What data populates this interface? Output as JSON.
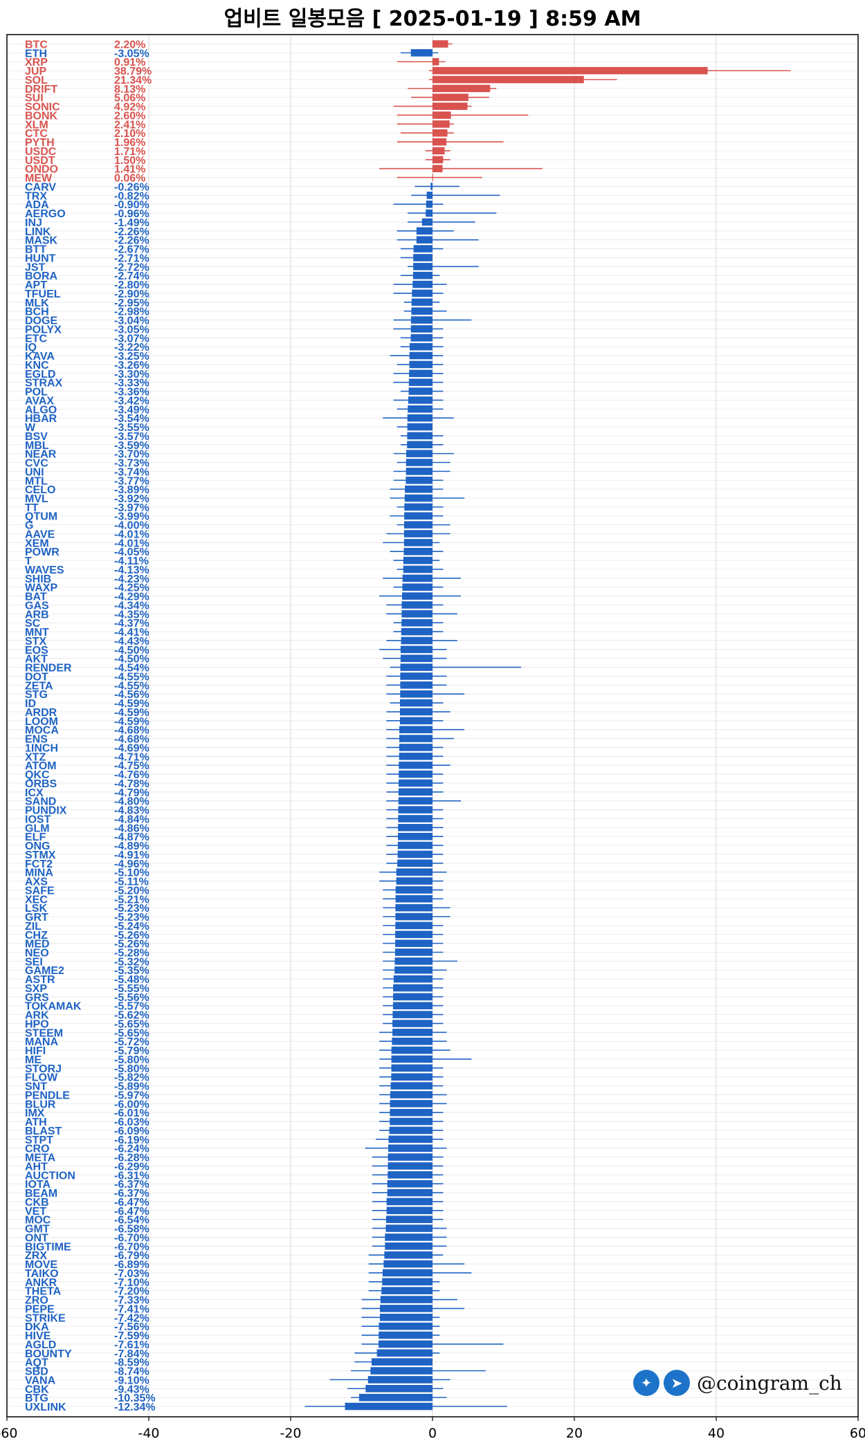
{
  "title": "업비트 일봉모음 [ 2025-01-19 ]  8:59 AM",
  "watermark": {
    "handle": "@coingram_ch",
    "icons": [
      "twitter-icon",
      "telegram-icon"
    ]
  },
  "colors": {
    "positive": "#d9534f",
    "negative": "#1f63c4",
    "grid": "#d9d9d9"
  },
  "chart_data": {
    "type": "bar",
    "orientation": "horizontal",
    "xlim": [
      -60,
      60
    ],
    "xticks": [
      -60,
      -40,
      -20,
      0,
      20,
      40,
      60
    ],
    "grid": true,
    "categories": [
      "BTC",
      "ETH",
      "XRP",
      "JUP",
      "SOL",
      "DRIFT",
      "SUI",
      "SONIC",
      "BONK",
      "XLM",
      "CTC",
      "PYTH",
      "USDC",
      "USDT",
      "ONDO",
      "MEW",
      "CARV",
      "TRX",
      "ADA",
      "AERGO",
      "INJ",
      "LINK",
      "MASK",
      "BTT",
      "HUNT",
      "JST",
      "BORA",
      "APT",
      "TFUEL",
      "MLK",
      "BCH",
      "DOGE",
      "POLYX",
      "ETC",
      "IQ",
      "KAVA",
      "KNC",
      "EGLD",
      "STRAX",
      "POL",
      "AVAX",
      "ALGO",
      "HBAR",
      "W",
      "BSV",
      "MBL",
      "NEAR",
      "CVC",
      "UNI",
      "MTL",
      "CELO",
      "MVL",
      "TT",
      "QTUM",
      "G",
      "AAVE",
      "XEM",
      "POWR",
      "T",
      "WAVES",
      "SHIB",
      "WAXP",
      "BAT",
      "GAS",
      "ARB",
      "SC",
      "MNT",
      "STX",
      "EOS",
      "AKT",
      "RENDER",
      "DOT",
      "ZETA",
      "STG",
      "ID",
      "ARDR",
      "LOOM",
      "MOCA",
      "ENS",
      "1INCH",
      "XTZ",
      "ATOM",
      "QKC",
      "ORBS",
      "ICX",
      "SAND",
      "PUNDIX",
      "IOST",
      "GLM",
      "ELF",
      "ONG",
      "STMX",
      "FCT2",
      "MINA",
      "AXS",
      "SAFE",
      "XEC",
      "LSK",
      "GRT",
      "ZIL",
      "CHZ",
      "MED",
      "NEO",
      "SEI",
      "GAME2",
      "ASTR",
      "SXP",
      "GRS",
      "TOKAMAK",
      "ARK",
      "HPO",
      "STEEM",
      "MANA",
      "HIFI",
      "ME",
      "STORJ",
      "FLOW",
      "SNT",
      "PENDLE",
      "BLUR",
      "IMX",
      "ATH",
      "BLAST",
      "STPT",
      "CRO",
      "META",
      "AHT",
      "AUCTION",
      "IOTA",
      "BEAM",
      "CKB",
      "VET",
      "MOC",
      "GMT",
      "ONT",
      "BIGTIME",
      "ZRX",
      "MOVE",
      "TAIKO",
      "ANKR",
      "THETA",
      "ZRO",
      "PEPE",
      "STRIKE",
      "DKA",
      "HIVE",
      "AGLD",
      "BOUNTY",
      "AQT",
      "SBD",
      "VANA",
      "CBK",
      "BTG",
      "UXLINK"
    ],
    "labels": [
      "2.20%",
      "-3.05%",
      "0.91%",
      "38.79%",
      "21.34%",
      "8.13%",
      "5.06%",
      "4.92%",
      "2.60%",
      "2.41%",
      "2.10%",
      "1.96%",
      "1.71%",
      "1.50%",
      "1.41%",
      "0.06%",
      "-0.26%",
      "-0.82%",
      "-0.90%",
      "-0.96%",
      "-1.49%",
      "-2.26%",
      "-2.26%",
      "-2.67%",
      "-2.71%",
      "-2.72%",
      "-2.74%",
      "-2.80%",
      "-2.90%",
      "-2.95%",
      "-2.98%",
      "-3.04%",
      "-3.05%",
      "-3.07%",
      "-3.22%",
      "-3.25%",
      "-3.26%",
      "-3.30%",
      "-3.33%",
      "-3.36%",
      "-3.42%",
      "-3.49%",
      "-3.54%",
      "-3.55%",
      "-3.57%",
      "-3.59%",
      "-3.70%",
      "-3.73%",
      "-3.74%",
      "-3.77%",
      "-3.89%",
      "-3.92%",
      "-3.97%",
      "-3.99%",
      "-4.00%",
      "-4.01%",
      "-4.01%",
      "-4.05%",
      "-4.11%",
      "-4.13%",
      "-4.23%",
      "-4.25%",
      "-4.29%",
      "-4.34%",
      "-4.35%",
      "-4.37%",
      "-4.41%",
      "-4.43%",
      "-4.50%",
      "-4.50%",
      "-4.54%",
      "-4.55%",
      "-4.55%",
      "-4.56%",
      "-4.59%",
      "-4.59%",
      "-4.59%",
      "-4.68%",
      "-4.68%",
      "-4.69%",
      "-4.71%",
      "-4.75%",
      "-4.76%",
      "-4.78%",
      "-4.79%",
      "-4.80%",
      "-4.83%",
      "-4.84%",
      "-4.86%",
      "-4.87%",
      "-4.89%",
      "-4.91%",
      "-4.96%",
      "-5.10%",
      "-5.11%",
      "-5.20%",
      "-5.21%",
      "-5.23%",
      "-5.23%",
      "-5.24%",
      "-5.26%",
      "-5.26%",
      "-5.28%",
      "-5.32%",
      "-5.35%",
      "-5.48%",
      "-5.55%",
      "-5.56%",
      "-5.57%",
      "-5.62%",
      "-5.65%",
      "-5.65%",
      "-5.72%",
      "-5.79%",
      "-5.80%",
      "-5.80%",
      "-5.82%",
      "-5.89%",
      "-5.97%",
      "-6.00%",
      "-6.01%",
      "-6.03%",
      "-6.09%",
      "-6.19%",
      "-6.24%",
      "-6.28%",
      "-6.29%",
      "-6.31%",
      "-6.37%",
      "-6.37%",
      "-6.47%",
      "-6.47%",
      "-6.54%",
      "-6.58%",
      "-6.70%",
      "-6.70%",
      "-6.79%",
      "-6.89%",
      "-7.03%",
      "-7.10%",
      "-7.20%",
      "-7.33%",
      "-7.41%",
      "-7.42%",
      "-7.56%",
      "-7.59%",
      "-7.61%",
      "-7.84%",
      "-8.59%",
      "-8.74%",
      "-9.10%",
      "-9.43%",
      "-10.35%",
      "-12.34%"
    ],
    "values": [
      2.2,
      -3.05,
      0.91,
      38.79,
      21.34,
      8.13,
      5.06,
      4.92,
      2.6,
      2.41,
      2.1,
      1.96,
      1.71,
      1.5,
      1.41,
      0.06,
      -0.26,
      -0.82,
      -0.9,
      -0.96,
      -1.49,
      -2.26,
      -2.26,
      -2.67,
      -2.71,
      -2.72,
      -2.74,
      -2.8,
      -2.9,
      -2.95,
      -2.98,
      -3.04,
      -3.05,
      -3.07,
      -3.22,
      -3.25,
      -3.26,
      -3.3,
      -3.33,
      -3.36,
      -3.42,
      -3.49,
      -3.54,
      -3.55,
      -3.57,
      -3.59,
      -3.7,
      -3.73,
      -3.74,
      -3.77,
      -3.89,
      -3.92,
      -3.97,
      -3.99,
      -4.0,
      -4.01,
      -4.01,
      -4.05,
      -4.11,
      -4.13,
      -4.23,
      -4.25,
      -4.29,
      -4.34,
      -4.35,
      -4.37,
      -4.41,
      -4.43,
      -4.5,
      -4.5,
      -4.54,
      -4.55,
      -4.55,
      -4.56,
      -4.59,
      -4.59,
      -4.59,
      -4.68,
      -4.68,
      -4.69,
      -4.71,
      -4.75,
      -4.76,
      -4.78,
      -4.79,
      -4.8,
      -4.83,
      -4.84,
      -4.86,
      -4.87,
      -4.89,
      -4.91,
      -4.96,
      -5.1,
      -5.11,
      -5.2,
      -5.21,
      -5.23,
      -5.23,
      -5.24,
      -5.26,
      -5.26,
      -5.28,
      -5.32,
      -5.35,
      -5.48,
      -5.55,
      -5.56,
      -5.57,
      -5.62,
      -5.65,
      -5.65,
      -5.72,
      -5.79,
      -5.8,
      -5.8,
      -5.82,
      -5.89,
      -5.97,
      -6.0,
      -6.01,
      -6.03,
      -6.09,
      -6.19,
      -6.24,
      -6.28,
      -6.29,
      -6.31,
      -6.37,
      -6.37,
      -6.47,
      -6.47,
      -6.54,
      -6.58,
      -6.7,
      -6.7,
      -6.79,
      -6.89,
      -7.03,
      -7.1,
      -7.2,
      -7.33,
      -7.41,
      -7.42,
      -7.56,
      -7.59,
      -7.61,
      -7.84,
      -8.59,
      -8.74,
      -9.1,
      -9.43,
      -10.35,
      -12.34
    ],
    "range_low": [
      0.3,
      -4.5,
      -5.0,
      -0.5,
      -0.5,
      -3.5,
      -3.0,
      -5.5,
      -5.0,
      -5.0,
      -4.5,
      -5.0,
      -1.0,
      -1.0,
      -7.5,
      -5.0,
      -2.5,
      -3.0,
      -5.5,
      -3.5,
      -3.5,
      -5.0,
      -5.0,
      -4.5,
      -4.5,
      -3.5,
      -4.5,
      -5.5,
      -5.5,
      -4.0,
      -4.0,
      -5.5,
      -5.5,
      -4.5,
      -4.5,
      -6.0,
      -5.0,
      -5.5,
      -5.5,
      -4.5,
      -5.5,
      -5.0,
      -7.0,
      -5.0,
      -4.5,
      -4.5,
      -5.5,
      -5.0,
      -5.5,
      -5.5,
      -6.0,
      -6.0,
      -5.0,
      -6.0,
      -5.0,
      -6.5,
      -7.0,
      -6.0,
      -5.5,
      -5.0,
      -7.0,
      -5.5,
      -7.5,
      -6.5,
      -6.5,
      -5.5,
      -5.5,
      -6.5,
      -7.5,
      -7.0,
      -6.0,
      -6.5,
      -6.5,
      -6.5,
      -6.0,
      -6.5,
      -6.5,
      -6.5,
      -6.5,
      -6.5,
      -6.5,
      -6.5,
      -6.5,
      -6.5,
      -6.5,
      -6.5,
      -6.5,
      -6.5,
      -6.5,
      -6.5,
      -6.5,
      -6.5,
      -6.5,
      -7.5,
      -7.5,
      -7.0,
      -7.0,
      -7.0,
      -7.0,
      -7.0,
      -7.0,
      -7.0,
      -7.0,
      -7.0,
      -7.0,
      -7.0,
      -7.0,
      -7.0,
      -7.0,
      -7.0,
      -7.0,
      -7.5,
      -7.5,
      -7.5,
      -7.5,
      -7.5,
      -7.5,
      -7.5,
      -7.5,
      -7.5,
      -7.5,
      -7.5,
      -7.5,
      -8.0,
      -9.5,
      -8.5,
      -8.5,
      -8.5,
      -8.5,
      -8.5,
      -8.5,
      -8.5,
      -8.5,
      -8.5,
      -8.5,
      -8.5,
      -9.0,
      -9.0,
      -9.0,
      -9.0,
      -9.0,
      -10.0,
      -10.0,
      -10.0,
      -10.0,
      -10.0,
      -10.0,
      -11.0,
      -11.0,
      -11.5,
      -14.5,
      -12.0,
      -11.5,
      -18.0,
      -15.0
    ],
    "range_high": [
      2.8,
      0.8,
      1.8,
      50.5,
      26.0,
      9.0,
      8.0,
      5.5,
      13.5,
      3.0,
      3.0,
      10.0,
      2.5,
      2.5,
      15.5,
      7.0,
      3.8,
      9.5,
      1.5,
      9.0,
      6.0,
      3.0,
      6.5,
      1.5,
      -1.0,
      6.5,
      1.0,
      2.0,
      1.5,
      1.0,
      2.0,
      5.5,
      1.5,
      1.5,
      1.5,
      1.5,
      1.5,
      1.5,
      1.5,
      1.5,
      1.5,
      1.5,
      3.0,
      -1.5,
      1.5,
      1.5,
      3.0,
      2.5,
      2.5,
      1.5,
      1.5,
      4.5,
      1.5,
      1.5,
      2.5,
      2.5,
      1.0,
      1.5,
      1.0,
      1.5,
      4.0,
      1.5,
      4.0,
      1.5,
      3.5,
      1.5,
      1.5,
      3.5,
      2.0,
      2.0,
      12.5,
      2.0,
      2.0,
      4.5,
      1.5,
      2.5,
      1.5,
      4.5,
      3.0,
      1.5,
      1.5,
      2.5,
      1.5,
      1.5,
      1.5,
      4.0,
      1.5,
      1.5,
      1.5,
      1.5,
      1.5,
      1.5,
      1.5,
      2.0,
      1.5,
      1.5,
      1.5,
      2.5,
      2.5,
      1.5,
      1.5,
      1.5,
      1.5,
      3.5,
      2.0,
      1.5,
      1.5,
      1.5,
      1.5,
      1.5,
      1.5,
      2.0,
      2.0,
      2.5,
      5.5,
      1.5,
      1.5,
      1.5,
      2.0,
      2.0,
      1.5,
      1.5,
      1.5,
      1.5,
      2.0,
      1.5,
      1.5,
      1.5,
      1.5,
      1.5,
      1.5,
      1.5,
      1.5,
      2.0,
      2.0,
      2.0,
      1.5,
      4.5,
      5.5,
      1.0,
      1.0,
      3.5,
      4.5,
      1.0,
      1.0,
      1.0,
      10.0,
      1.0,
      -2.0,
      7.5,
      2.5,
      1.5,
      2.0,
      10.5
    ]
  }
}
